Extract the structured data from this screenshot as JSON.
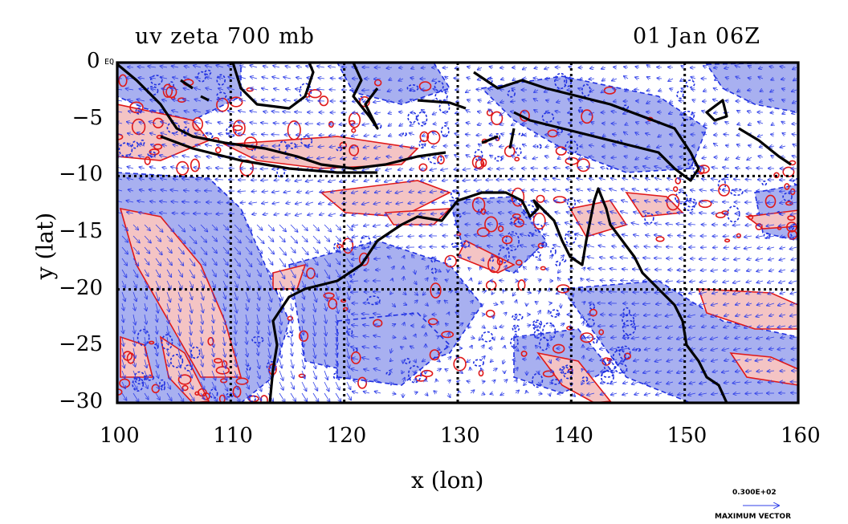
{
  "map": {
    "title": "uv zeta 700 mb",
    "time": "01 Jan 06Z",
    "xlabel": "x (lon)",
    "ylabel": "y (lat)",
    "equator_marker": "EQ",
    "x_ticks": [
      "100",
      "110",
      "120",
      "130",
      "140",
      "150",
      "160"
    ],
    "y_ticks": [
      "0",
      "−5",
      "−10",
      "−15",
      "−20",
      "−25",
      "−30"
    ],
    "lon_range": [
      100,
      160
    ],
    "lat_range": [
      -30,
      0
    ],
    "gridlines_lon": [
      110,
      120,
      130,
      140,
      150
    ],
    "gridlines_lat": [
      -10,
      -20
    ],
    "max_vector_value": "0.300E+02",
    "max_vector_label": "MAXIMUM VECTOR",
    "colors": {
      "positive_fill": "#f4c4c4",
      "positive_line": "#e01818",
      "negative_fill": "#a8b0f0",
      "negative_line": "#2030e0",
      "vector": "#3040e8",
      "coast": "#000000"
    }
  }
}
